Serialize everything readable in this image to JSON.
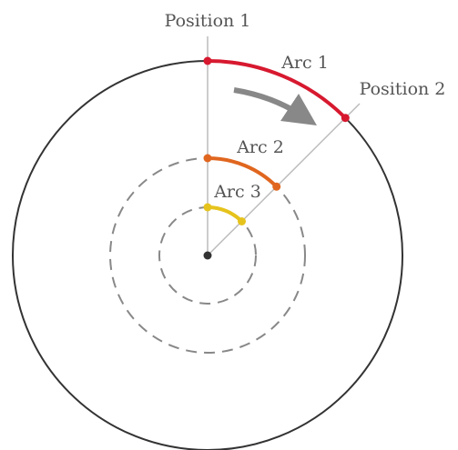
{
  "labels": {
    "position_1": "Position 1",
    "position_2": "Position 2",
    "arc_1": "Arc 1",
    "arc_2": "Arc 2",
    "arc_3": "Arc 3"
  }
}
